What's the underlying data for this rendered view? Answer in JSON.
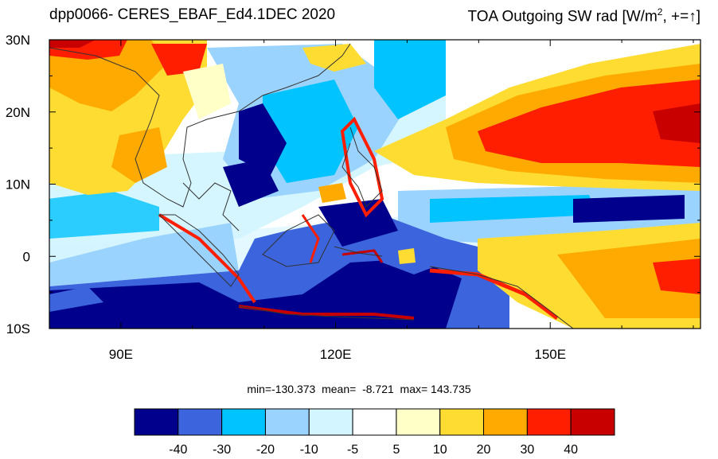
{
  "title": {
    "left": "dpp0066- CERES_EBAF_Ed4.1DEC 2020",
    "right_prefix": "TOA Outgoing SW rad [W/m",
    "right_sup": "2",
    "right_suffix": ", +=",
    "right_arrow": "↑",
    "right_close": "]"
  },
  "map": {
    "lon_range": [
      80,
      171
    ],
    "lat_range": [
      -10,
      30
    ],
    "lat_labels": [
      "30N",
      "20N",
      "10N",
      "0",
      "10S"
    ],
    "lon_labels": [
      "90E",
      "120E",
      "150E"
    ]
  },
  "stats": "min=-130.373  mean=  -8.721  max= 143.735",
  "colorbar": {
    "labels": [
      "-40",
      "-30",
      "-20",
      "-10",
      "-5",
      "5",
      "10",
      "20",
      "30",
      "40"
    ],
    "colors": [
      "#00008c",
      "#3c64dc",
      "#00c3ff",
      "#9bd3ff",
      "#d2f5ff",
      "#ffffff",
      "#ffffc8",
      "#ffdc32",
      "#ffaa00",
      "#ff1e00",
      "#c80000"
    ]
  }
}
